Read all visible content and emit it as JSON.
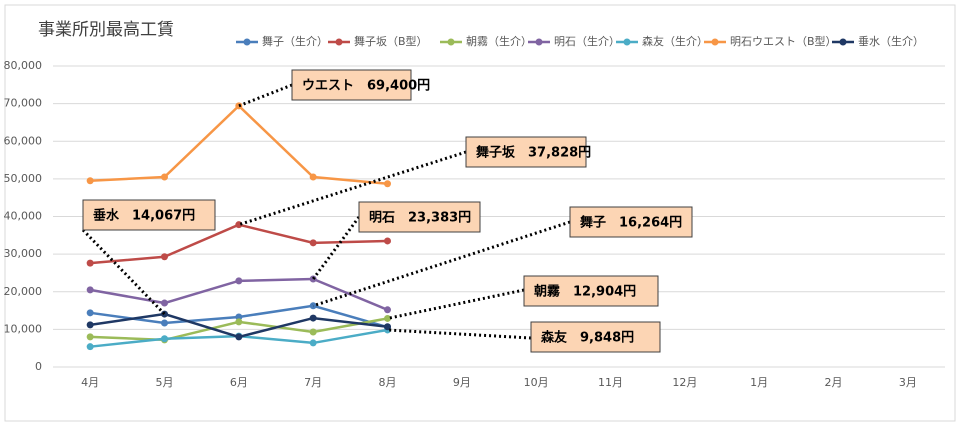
{
  "chart_data": {
    "type": "line",
    "title": "事業所別最高工賃",
    "categories": [
      "4月",
      "5月",
      "6月",
      "7月",
      "8月",
      "9月",
      "10月",
      "11月",
      "12月",
      "1月",
      "2月",
      "3月"
    ],
    "series": [
      {
        "name": "舞子（生介）",
        "color": "#4a7ebb",
        "values": [
          14400,
          11700,
          13300,
          16264,
          10600,
          null,
          null,
          null,
          null,
          null,
          null,
          null
        ]
      },
      {
        "name": "舞子坂（B型）",
        "color": "#be4b48",
        "values": [
          27600,
          29300,
          37828,
          33000,
          33500,
          null,
          null,
          null,
          null,
          null,
          null,
          null
        ]
      },
      {
        "name": "朝霧（生介）",
        "color": "#9bbb59",
        "values": [
          8000,
          7200,
          12000,
          9300,
          12904,
          null,
          null,
          null,
          null,
          null,
          null,
          null
        ]
      },
      {
        "name": "明石（生介）",
        "color": "#8064a2",
        "values": [
          20500,
          17000,
          22900,
          23383,
          15200,
          null,
          null,
          null,
          null,
          null,
          null,
          null
        ]
      },
      {
        "name": "森友（生介）",
        "color": "#4bacc6",
        "values": [
          5400,
          7500,
          8200,
          6400,
          9848,
          null,
          null,
          null,
          null,
          null,
          null,
          null
        ]
      },
      {
        "name": "明石ウエスト（B型）",
        "color": "#f79646",
        "values": [
          49500,
          50500,
          69400,
          50500,
          48700,
          null,
          null,
          null,
          null,
          null,
          null,
          null
        ]
      },
      {
        "name": "垂水（生介）",
        "color": "#1f3864",
        "values": [
          11200,
          14067,
          8000,
          13000,
          10700,
          null,
          null,
          null,
          null,
          null,
          null,
          null
        ]
      }
    ],
    "ylim": [
      0,
      80000
    ],
    "yticks": [
      0,
      {
        "value": 10000,
        "label": "10,000"
      },
      {
        "value": 20000,
        "label": "20,000"
      },
      {
        "value": 30000,
        "label": "30,000"
      },
      {
        "value": 40000,
        "label": "40,000"
      },
      {
        "value": 50000,
        "label": "50,000"
      },
      {
        "value": 60000,
        "label": "60,000"
      },
      {
        "value": 70000,
        "label": "70,000"
      },
      {
        "value": 80000,
        "label": "80,000"
      }
    ],
    "grid": true,
    "legend": "top",
    "annotations": [
      {
        "text": "ウエスト　69,400円"
      },
      {
        "text": "舞子坂　37,828円"
      },
      {
        "text": "垂水　14,067円"
      },
      {
        "text": "明石　23,383円"
      },
      {
        "text": "舞子　16,264円"
      },
      {
        "text": "朝霧　12,904円"
      },
      {
        "text": "森友　9,848円"
      }
    ]
  }
}
